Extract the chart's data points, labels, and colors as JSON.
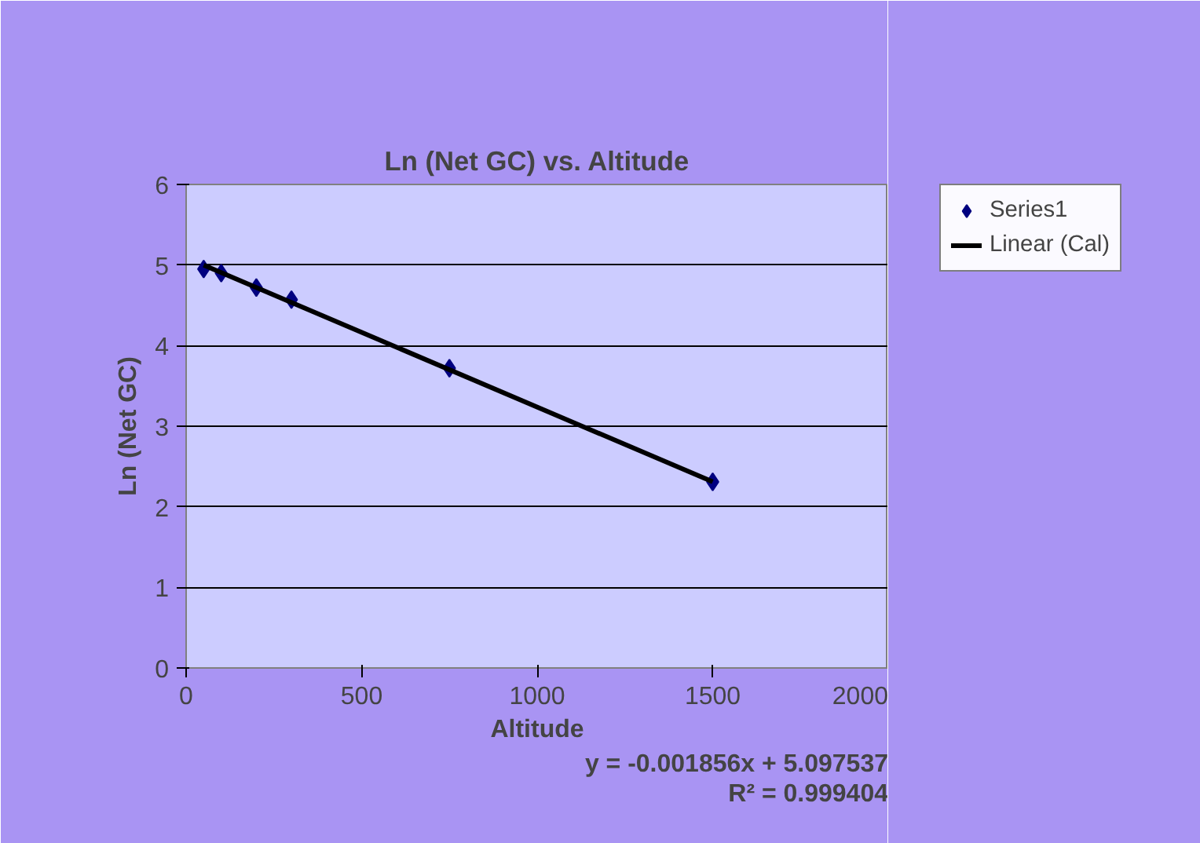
{
  "chart_data": {
    "type": "scatter",
    "title": "Ln (Net GC) vs. Altitude",
    "xlabel": "Altitude",
    "ylabel": "Ln (Net GC)",
    "xlim": [
      0,
      2000
    ],
    "xticks": [
      0,
      500,
      1000,
      1500,
      2000
    ],
    "ylim": [
      0,
      6
    ],
    "yticks": [
      0,
      1,
      2,
      3,
      4,
      5,
      6
    ],
    "grid": "y",
    "legend": "top right",
    "series": [
      {
        "name": "Series1",
        "marker": "diamond",
        "color": "#000080",
        "x": [
          50,
          100,
          200,
          300,
          750,
          1500
        ],
        "values": [
          4.95,
          4.9,
          4.72,
          4.57,
          3.72,
          2.31
        ]
      },
      {
        "name": "Linear (Cal)",
        "type": "line",
        "color": "#000000",
        "line_style": "solid",
        "x": [
          50,
          1500
        ],
        "values": [
          5.0,
          2.31
        ]
      }
    ],
    "annotations": [
      "y = -0.001856x + 5.097537",
      "R² = 0.999404"
    ]
  }
}
